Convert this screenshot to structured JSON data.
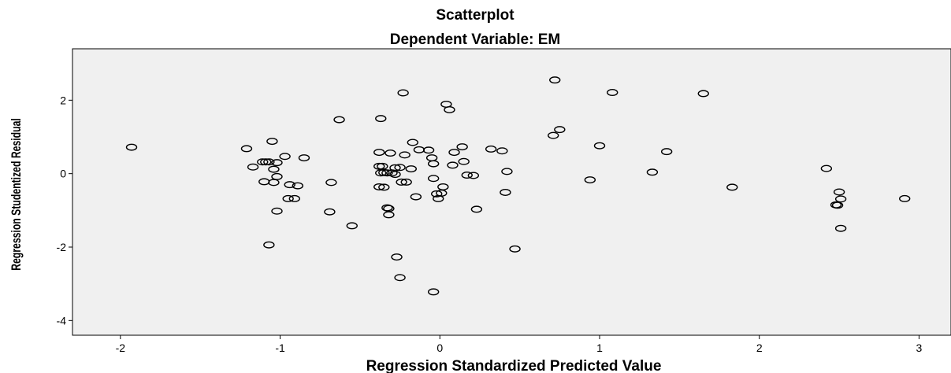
{
  "chart_data": {
    "type": "scatter",
    "title": "Scatterplot",
    "subtitle": "Dependent Variable: EM",
    "xlabel": "Regression Standardized Predicted Value",
    "ylabel": "Regression Studentized Residual",
    "xlim": [
      -2.3,
      3.2
    ],
    "ylim": [
      -4.4,
      3.4
    ],
    "xticks": [
      -2,
      -1,
      0,
      1,
      2,
      3
    ],
    "yticks": [
      2,
      0,
      -2,
      -4
    ],
    "grid": false,
    "colors": {
      "plot_background": "#f0f0f0",
      "marker": "#000000"
    },
    "points": [
      {
        "x": -1.93,
        "y": 0.72
      },
      {
        "x": -1.21,
        "y": 0.68
      },
      {
        "x": -1.17,
        "y": 0.18
      },
      {
        "x": -1.11,
        "y": 0.32
      },
      {
        "x": -1.09,
        "y": 0.32
      },
      {
        "x": -1.07,
        "y": 0.32
      },
      {
        "x": -1.05,
        "y": 0.88
      },
      {
        "x": -1.04,
        "y": 0.12
      },
      {
        "x": -1.02,
        "y": 0.3
      },
      {
        "x": -0.97,
        "y": 0.47
      },
      {
        "x": -1.1,
        "y": -0.22
      },
      {
        "x": -1.04,
        "y": -0.24
      },
      {
        "x": -1.02,
        "y": -0.08
      },
      {
        "x": -0.94,
        "y": -0.3
      },
      {
        "x": -0.89,
        "y": -0.33
      },
      {
        "x": -0.85,
        "y": 0.43
      },
      {
        "x": -0.95,
        "y": -0.68
      },
      {
        "x": -0.91,
        "y": -0.68
      },
      {
        "x": -1.02,
        "y": -1.02
      },
      {
        "x": -1.07,
        "y": -1.94
      },
      {
        "x": -0.68,
        "y": -0.24
      },
      {
        "x": -0.69,
        "y": -1.04
      },
      {
        "x": -0.63,
        "y": 1.47
      },
      {
        "x": -0.55,
        "y": -1.42
      },
      {
        "x": -0.37,
        "y": 1.5
      },
      {
        "x": -0.38,
        "y": 0.58
      },
      {
        "x": -0.31,
        "y": 0.56
      },
      {
        "x": -0.38,
        "y": 0.2
      },
      {
        "x": -0.36,
        "y": 0.2
      },
      {
        "x": -0.37,
        "y": 0.02
      },
      {
        "x": -0.35,
        "y": 0.03
      },
      {
        "x": -0.33,
        "y": 0.02
      },
      {
        "x": -0.3,
        "y": 0.02
      },
      {
        "x": -0.28,
        "y": 0.16
      },
      {
        "x": -0.25,
        "y": 0.17
      },
      {
        "x": -0.28,
        "y": -0.02
      },
      {
        "x": -0.38,
        "y": -0.36
      },
      {
        "x": -0.35,
        "y": -0.37
      },
      {
        "x": -0.33,
        "y": -0.93
      },
      {
        "x": -0.32,
        "y": -0.95
      },
      {
        "x": -0.32,
        "y": -1.12
      },
      {
        "x": -0.24,
        "y": -0.23
      },
      {
        "x": -0.21,
        "y": -0.23
      },
      {
        "x": -0.22,
        "y": 0.51
      },
      {
        "x": -0.18,
        "y": 0.13
      },
      {
        "x": -0.23,
        "y": 2.2
      },
      {
        "x": -0.17,
        "y": 0.85
      },
      {
        "x": -0.13,
        "y": 0.65
      },
      {
        "x": -0.15,
        "y": -0.63
      },
      {
        "x": -0.27,
        "y": -2.27
      },
      {
        "x": -0.25,
        "y": -2.83
      },
      {
        "x": -0.07,
        "y": 0.64
      },
      {
        "x": -0.05,
        "y": 0.43
      },
      {
        "x": -0.04,
        "y": 0.27
      },
      {
        "x": -0.04,
        "y": -0.13
      },
      {
        "x": -0.02,
        "y": -0.55
      },
      {
        "x": 0.01,
        "y": -0.53
      },
      {
        "x": 0.02,
        "y": -0.36
      },
      {
        "x": -0.01,
        "y": -0.68
      },
      {
        "x": 0.04,
        "y": 1.89
      },
      {
        "x": 0.06,
        "y": 1.74
      },
      {
        "x": 0.08,
        "y": 0.23
      },
      {
        "x": 0.09,
        "y": 0.58
      },
      {
        "x": 0.14,
        "y": 0.73
      },
      {
        "x": 0.15,
        "y": 0.33
      },
      {
        "x": 0.17,
        "y": -0.04
      },
      {
        "x": 0.21,
        "y": -0.05
      },
      {
        "x": 0.23,
        "y": -0.97
      },
      {
        "x": 0.32,
        "y": 0.67
      },
      {
        "x": 0.39,
        "y": 0.62
      },
      {
        "x": 0.42,
        "y": 0.06
      },
      {
        "x": 0.41,
        "y": -0.51
      },
      {
        "x": 0.47,
        "y": -2.05
      },
      {
        "x": -0.04,
        "y": -3.22
      },
      {
        "x": 0.72,
        "y": 2.55
      },
      {
        "x": 0.71,
        "y": 1.04
      },
      {
        "x": 0.75,
        "y": 1.2
      },
      {
        "x": 0.94,
        "y": -0.17
      },
      {
        "x": 1.0,
        "y": 0.76
      },
      {
        "x": 1.08,
        "y": 2.21
      },
      {
        "x": 1.33,
        "y": 0.04
      },
      {
        "x": 1.42,
        "y": 0.6
      },
      {
        "x": 1.65,
        "y": 2.18
      },
      {
        "x": 1.83,
        "y": -0.37
      },
      {
        "x": 2.42,
        "y": 0.14
      },
      {
        "x": 2.48,
        "y": -0.85
      },
      {
        "x": 2.49,
        "y": -0.86
      },
      {
        "x": 2.5,
        "y": -0.5
      },
      {
        "x": 2.51,
        "y": -0.69
      },
      {
        "x": 2.51,
        "y": -1.49
      },
      {
        "x": 2.91,
        "y": -0.68
      }
    ]
  }
}
